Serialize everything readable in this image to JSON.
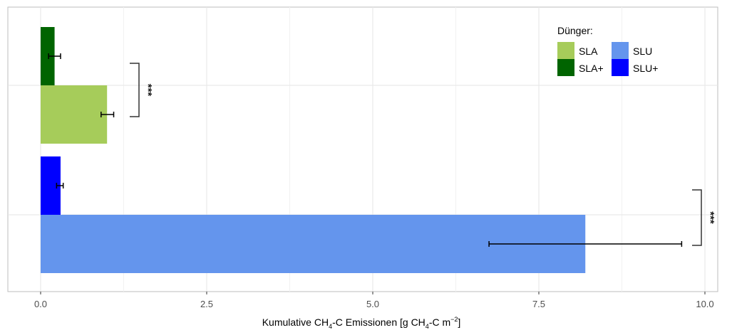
{
  "chart_data": {
    "type": "bar",
    "orientation": "horizontal",
    "xlabel": {
      "prefix": "Kumulative CH",
      "sub1": "4",
      "middle": "-C Emissionen [g CH",
      "sub2": "4",
      "suffix": "-C m",
      "sup": "−2",
      "end": "]"
    },
    "xlim": [
      0,
      10
    ],
    "xticks": [
      0,
      2.5,
      5,
      7.5,
      10
    ],
    "xtick_labels": [
      "0.0",
      "2.5",
      "5.0",
      "7.5",
      "10.0"
    ],
    "grid": true,
    "legend": {
      "title": "Dünger:",
      "placement": "top-right",
      "entries": [
        {
          "label": "SLA",
          "color": "#a6cc5a"
        },
        {
          "label": "SLU",
          "color": "#6495ed"
        },
        {
          "label": "SLA+",
          "color": "#006400"
        },
        {
          "label": "SLU+",
          "color": "#0000ff"
        }
      ]
    },
    "groups": [
      {
        "bars": [
          {
            "series": "SLA+",
            "value": 0.21,
            "err_low": 0.12,
            "err_high": 0.3,
            "color": "#006400",
            "error_bar": true
          },
          {
            "series": "SLA",
            "value": 1.0,
            "err_low": 0.91,
            "err_high": 1.1,
            "color": "#a6cc5a",
            "error_bar": true
          }
        ],
        "significance": "***"
      },
      {
        "bars": [
          {
            "series": "SLU+",
            "value": 0.3,
            "err_low": 0.24,
            "err_high": 0.34,
            "color": "#0000ff",
            "error_bar": true
          },
          {
            "series": "SLU",
            "value": 8.2,
            "err_low": 6.75,
            "err_high": 9.65,
            "color": "#6495ed",
            "error_bar": true
          }
        ],
        "significance": "***"
      }
    ]
  }
}
